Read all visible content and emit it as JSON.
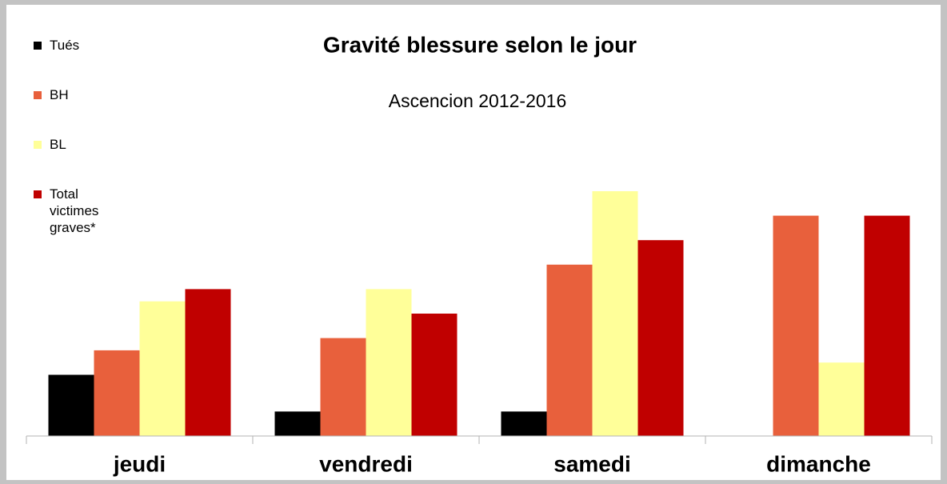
{
  "chart_data": {
    "type": "bar",
    "title": "Gravité blessure selon le jour",
    "subtitle": "Ascencion 2012-2016",
    "categories": [
      "jeudi",
      "vendredi",
      "samedi",
      "dimanche"
    ],
    "series": [
      {
        "name": "Tués",
        "color": "#000000",
        "values": [
          5,
          2,
          2,
          null
        ]
      },
      {
        "name": "BH",
        "color": "#e8603c",
        "values": [
          7,
          8,
          14,
          18
        ]
      },
      {
        "name": "BL",
        "color": "#ffff99",
        "values": [
          11,
          12,
          20,
          6
        ]
      },
      {
        "name": "Total victimes graves*",
        "color": "#c00000",
        "values": [
          12,
          10,
          16,
          18
        ]
      }
    ],
    "ylim": [
      0,
      20
    ]
  }
}
